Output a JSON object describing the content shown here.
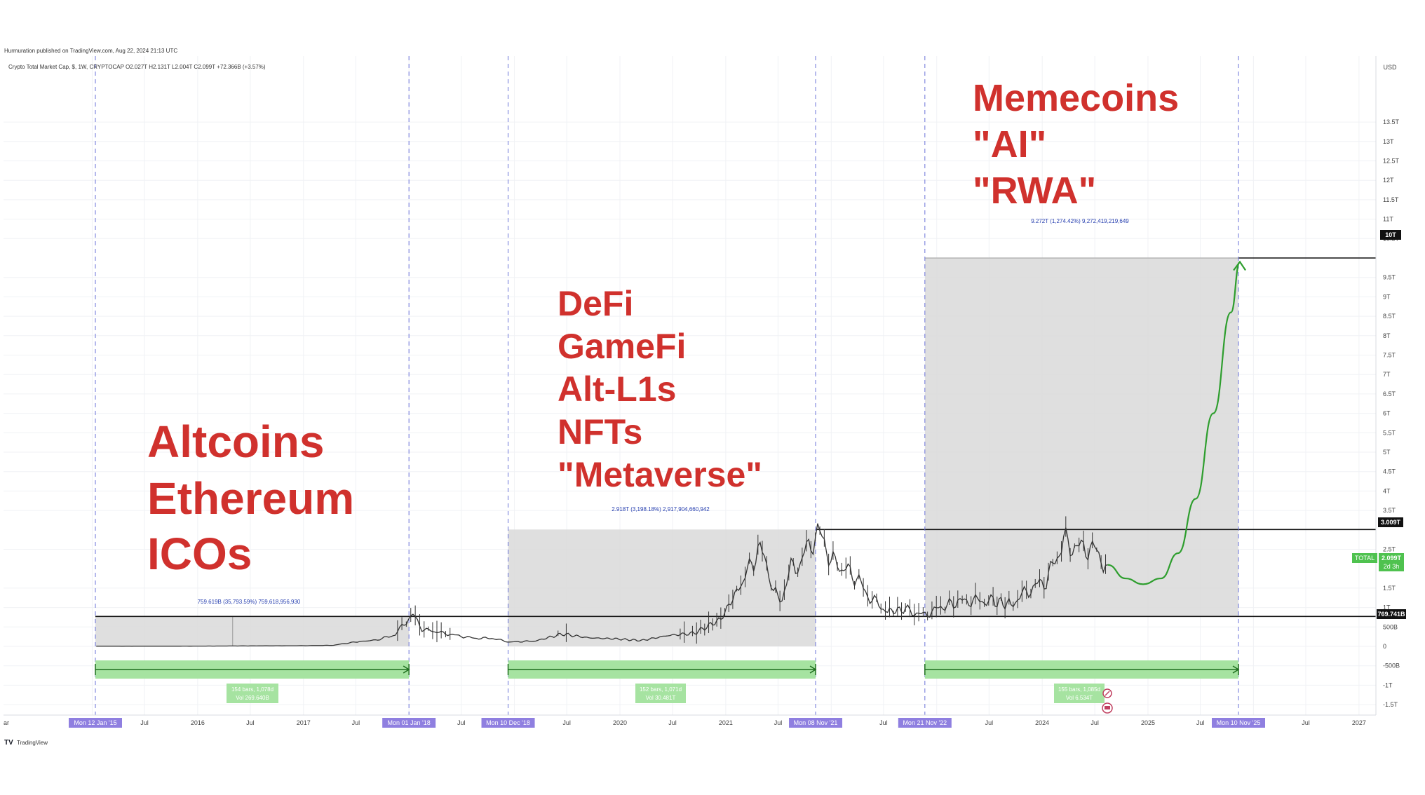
{
  "header": {
    "published": "Hurmuration published on TradingView.com, Aug 22, 2024 21:13 UTC",
    "symbol_line": "Crypto Total Market Cap, $, 1W, CRYPTOCAP  O2.027T  H2.131T  L2.004T  C2.099T  +72.366B (+3.57%)"
  },
  "footer": {
    "brand": "TradingView"
  },
  "colors": {
    "annotation_red": "#d0312d",
    "candle": "#333333",
    "zone_fill": "#d9d9d9",
    "range_bar": "#a6e3a1",
    "range_bar_line": "#1f6e1f",
    "projection_green": "#2e9e2e",
    "date_label_bg": "#8f7fe0",
    "measure_text": "#2840b0"
  },
  "annotations": {
    "cycle1": [
      "Altcoins",
      "Ethereum",
      "ICOs"
    ],
    "cycle2": [
      "DeFi",
      "GameFi",
      "Alt-L1s",
      "NFTs",
      "\"Metaverse\""
    ],
    "cycle3": [
      "Memecoins",
      "\"AI\"",
      "\"RWA\""
    ]
  },
  "measures": [
    "759.619B (35,793.59%) 759,618,956,930",
    "2.918T (3,198.18%) 2,917,904,660,942",
    "9.272T (1,274.42%) 9,272,419,219,649"
  ],
  "range_labels": [
    {
      "line1": "154 bars, 1,078d",
      "line2": "Vol 269.640B"
    },
    {
      "line1": "152 bars, 1,071d",
      "line2": "Vol 30.481T"
    },
    {
      "line1": "155 bars, 1,085d",
      "line2": "Vol 6.534T"
    }
  ],
  "price_labels": {
    "target": "10T",
    "prev_high": "3.009T",
    "current_name": "TOTAL",
    "current": "2.099T",
    "current_sub": "2d 3h",
    "base": "769.741B"
  },
  "chart_data": {
    "type": "line",
    "title": "",
    "xlabel": "",
    "ylabel": "",
    "y_unit": "USD",
    "x_range": [
      "2015-01",
      "2027-06"
    ],
    "ylim": [
      -1600000000000,
      13900000000000
    ],
    "grid": true,
    "x_tick_labels": [
      "ar",
      "Mon 12 Jan '15",
      "Jul",
      "2016",
      "Jul",
      "2017",
      "Jul",
      "Mon 01 Jan '18",
      "Jul",
      "Mon 10 Dec '18",
      "Jul",
      "2020",
      "Jul",
      "2021",
      "Jul",
      "Mon 08 Nov '21",
      "Jul",
      "Mon 21 Nov '22",
      "Jul",
      "2024",
      "Jul",
      "2025",
      "Jul",
      "Mon 10 Nov '25",
      "Jul",
      "2027"
    ],
    "y_tick_labels": [
      "USD",
      "13.5T",
      "13T",
      "12.5T",
      "12T",
      "11.5T",
      "11T",
      "10.5T",
      "9.5T",
      "9T",
      "8.5T",
      "8T",
      "7.5T",
      "7T",
      "6.5T",
      "6T",
      "5.5T",
      "5T",
      "4.5T",
      "4T",
      "3.5T",
      "2.5T",
      "1.5T",
      "1T",
      "500B",
      "0",
      "-500B",
      "-1T",
      "-1.5T"
    ],
    "y_tick_values": [
      13500,
      13000,
      12500,
      12000,
      11500,
      11000,
      10500,
      9500,
      9000,
      8500,
      8000,
      7500,
      7000,
      6500,
      6000,
      5500,
      5000,
      4500,
      4000,
      3500,
      2500,
      1500,
      1000,
      500,
      0,
      -500,
      -1000,
      -1500
    ],
    "cycle_markers": [
      "2015-01-12",
      "2018-01-01",
      "2018-12-10",
      "2021-11-08",
      "2022-11-21",
      "2025-11-10"
    ],
    "horizontal_levels_billions": [
      769.741,
      3009,
      10000
    ],
    "series": [
      {
        "values_billions": [
          [
            "2015-01",
            5
          ],
          [
            "2015-07",
            5
          ],
          [
            "2016-01",
            7
          ],
          [
            "2016-07",
            12
          ],
          [
            "2017-01",
            18
          ],
          [
            "2017-04",
            28
          ],
          [
            "2017-06",
            100
          ],
          [
            "2017-09",
            170
          ],
          [
            "2017-11",
            300
          ],
          [
            "2017-12",
            600
          ],
          [
            "2018-01",
            810
          ],
          [
            "2018-02",
            450
          ],
          [
            "2018-04",
            360
          ],
          [
            "2018-06",
            280
          ],
          [
            "2018-08",
            210
          ],
          [
            "2018-10",
            210
          ],
          [
            "2018-12",
            110
          ],
          [
            "2019-03",
            140
          ],
          [
            "2019-06",
            320
          ],
          [
            "2019-09",
            220
          ],
          [
            "2019-12",
            195
          ],
          [
            "2020-03",
            150
          ],
          [
            "2020-06",
            280
          ],
          [
            "2020-09",
            340
          ],
          [
            "2020-12",
            700
          ],
          [
            "2021-02",
            1500
          ],
          [
            "2021-04",
            2350
          ],
          [
            "2021-05",
            2450
          ],
          [
            "2021-06",
            1350
          ],
          [
            "2021-07",
            1250
          ],
          [
            "2021-08",
            2000
          ],
          [
            "2021-09",
            2150
          ],
          [
            "2021-10",
            2600
          ],
          [
            "2021-11",
            2950
          ],
          [
            "2022-01",
            2100
          ],
          [
            "2022-03",
            1900
          ],
          [
            "2022-05",
            1250
          ],
          [
            "2022-07",
            900
          ],
          [
            "2022-09",
            950
          ],
          [
            "2022-11",
            800
          ],
          [
            "2023-01",
            1000
          ],
          [
            "2023-03",
            1150
          ],
          [
            "2023-05",
            1180
          ],
          [
            "2023-07",
            1160
          ],
          [
            "2023-09",
            1080
          ],
          [
            "2023-11",
            1450
          ],
          [
            "2024-01",
            1700
          ],
          [
            "2024-03",
            2700
          ],
          [
            "2024-05",
            2500
          ],
          [
            "2024-06",
            2600
          ],
          [
            "2024-07",
            2350
          ],
          [
            "2024-08",
            2099
          ]
        ]
      },
      {
        "values_billions": [
          [
            "2024-08",
            2099
          ],
          [
            "2024-10",
            1750
          ],
          [
            "2024-12",
            1600
          ],
          [
            "2025-02",
            1750
          ],
          [
            "2025-04",
            2400
          ],
          [
            "2025-06",
            3800
          ],
          [
            "2025-08",
            6000
          ],
          [
            "2025-10",
            8600
          ],
          [
            "2025-11",
            9900
          ]
        ]
      }
    ]
  }
}
